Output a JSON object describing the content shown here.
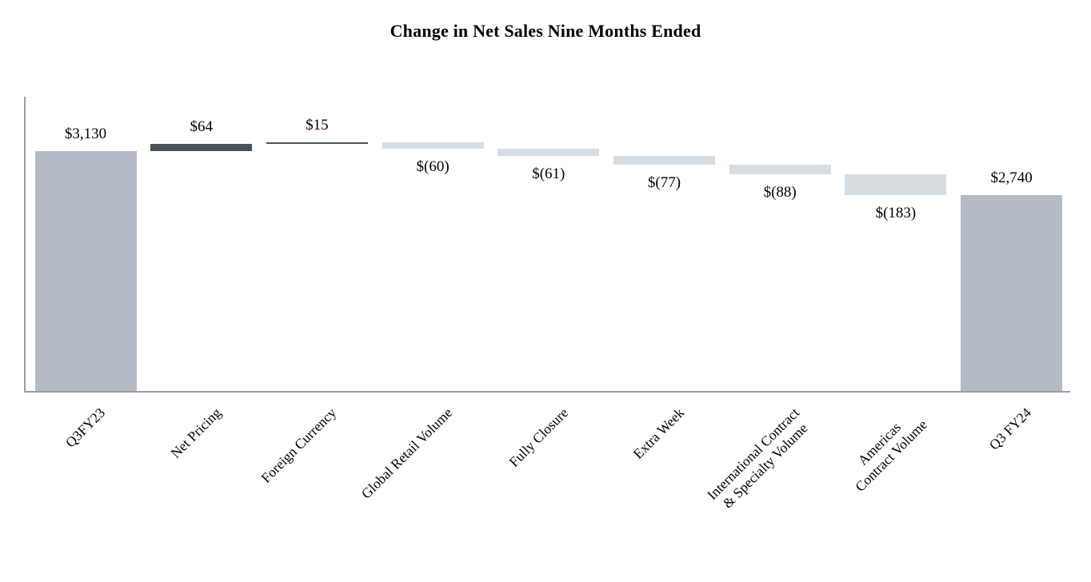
{
  "chart_data": {
    "type": "bar",
    "subtype": "waterfall",
    "title": "Change in Net Sales Nine Months Ended",
    "ylim": [
      1000,
      3614
    ],
    "grid": false,
    "legend": "none",
    "categories": [
      "Q3FY23",
      "Net Pricing",
      "Foreign Currency",
      "Global Retail Volume",
      "Fully Closure",
      "Extra Week",
      "International Contract & Specialty Volume",
      "Americas Contract Volume",
      "Q3 FY24"
    ],
    "steps": [
      {
        "category_lines": [
          "Q3FY23"
        ],
        "value": 3130,
        "kind": "total",
        "display": "$3,130"
      },
      {
        "category_lines": [
          "Net Pricing"
        ],
        "value": 64,
        "kind": "increase",
        "display": "$64"
      },
      {
        "category_lines": [
          "Foreign Currency"
        ],
        "value": 15,
        "kind": "increase",
        "display": "$15"
      },
      {
        "category_lines": [
          "Global Retail Volume"
        ],
        "value": -60,
        "kind": "decrease",
        "display": "$(60)"
      },
      {
        "category_lines": [
          "Fully Closure"
        ],
        "value": -61,
        "kind": "decrease",
        "display": "$(61)"
      },
      {
        "category_lines": [
          "Extra Week"
        ],
        "value": -77,
        "kind": "decrease",
        "display": "$(77)"
      },
      {
        "category_lines": [
          "International Contract",
          "& Specialty Volume"
        ],
        "value": -88,
        "kind": "decrease",
        "display": "$(88)"
      },
      {
        "category_lines": [
          "Americas",
          "Contract Volume"
        ],
        "value": -183,
        "kind": "decrease",
        "display": "$(183)"
      },
      {
        "category_lines": [
          "Q3 FY24"
        ],
        "value": 2740,
        "kind": "total",
        "display": "$2,740"
      }
    ],
    "colors": {
      "total": "#b3bcc5",
      "increase": "#4a525b",
      "decrease": "#d8dde2",
      "axis": "#9e9ea0"
    }
  }
}
